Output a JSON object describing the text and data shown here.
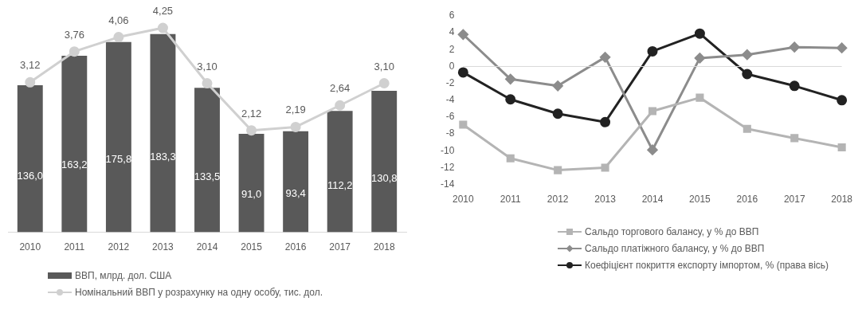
{
  "chart_data": [
    {
      "type": "bar",
      "categories": [
        "2010",
        "2011",
        "2012",
        "2013",
        "2014",
        "2015",
        "2016",
        "2017",
        "2018"
      ],
      "grid": false,
      "legend": "bottom",
      "tick_labels": "x",
      "series": [
        {
          "name": "ВВП, млрд. дол. США",
          "type": "bar",
          "color": "#595959",
          "values": [
            136.0,
            163.2,
            175.8,
            183.3,
            133.5,
            91.0,
            93.4,
            112.2,
            130.8
          ],
          "value_labels": [
            "136,0",
            "163,2",
            "175,8",
            "183,3",
            "133,5",
            "91,0",
            "93,4",
            "112,2",
            "130,8"
          ]
        },
        {
          "name": "Номінальний ВВП у розрахунку на одну особу, тис. дол.",
          "type": "line",
          "axis": "y2",
          "color": "#d0d0d0",
          "marker": "circle",
          "values": [
            3.12,
            3.76,
            4.06,
            4.25,
            3.1,
            2.12,
            2.19,
            2.64,
            3.1
          ],
          "value_labels": [
            "3,12",
            "3,76",
            "4,06",
            "4,25",
            "3,10",
            "2,12",
            "2,19",
            "2,64",
            "3,10"
          ]
        }
      ]
    },
    {
      "type": "line",
      "categories": [
        "2010",
        "2011",
        "2012",
        "2013",
        "2014",
        "2015",
        "2016",
        "2017",
        "2018"
      ],
      "ylim": [
        -14,
        6
      ],
      "yticks": [
        -14,
        -12,
        -10,
        -8,
        -6,
        -4,
        -2,
        0,
        2,
        4,
        6
      ],
      "grid": false,
      "ref_lines": [
        {
          "axis": "y",
          "value": 0,
          "color": "#d9d9d9"
        }
      ],
      "legend": "bottom",
      "series": [
        {
          "name": "Сальдо торгового балансу, у % до ВВП",
          "color": "#b4b4b4",
          "marker": "square",
          "values": [
            -6.9,
            -10.9,
            -12.3,
            -12.0,
            -5.3,
            -3.7,
            -7.4,
            -8.5,
            -9.6
          ]
        },
        {
          "name": "Сальдо платіжного балансу, у % до ВВП",
          "color": "#8c8c8c",
          "marker": "diamond",
          "values": [
            3.8,
            -1.5,
            -2.3,
            1.1,
            -9.9,
            1.0,
            1.4,
            2.3,
            2.2
          ]
        },
        {
          "name": "Коефіцієнт покриття експорту імпортом, % (права вісь)",
          "color": "#222222",
          "marker": "circle",
          "values": [
            -0.7,
            -3.9,
            -5.6,
            -6.6,
            1.8,
            3.9,
            -0.9,
            -2.3,
            -4.0
          ]
        }
      ]
    }
  ]
}
